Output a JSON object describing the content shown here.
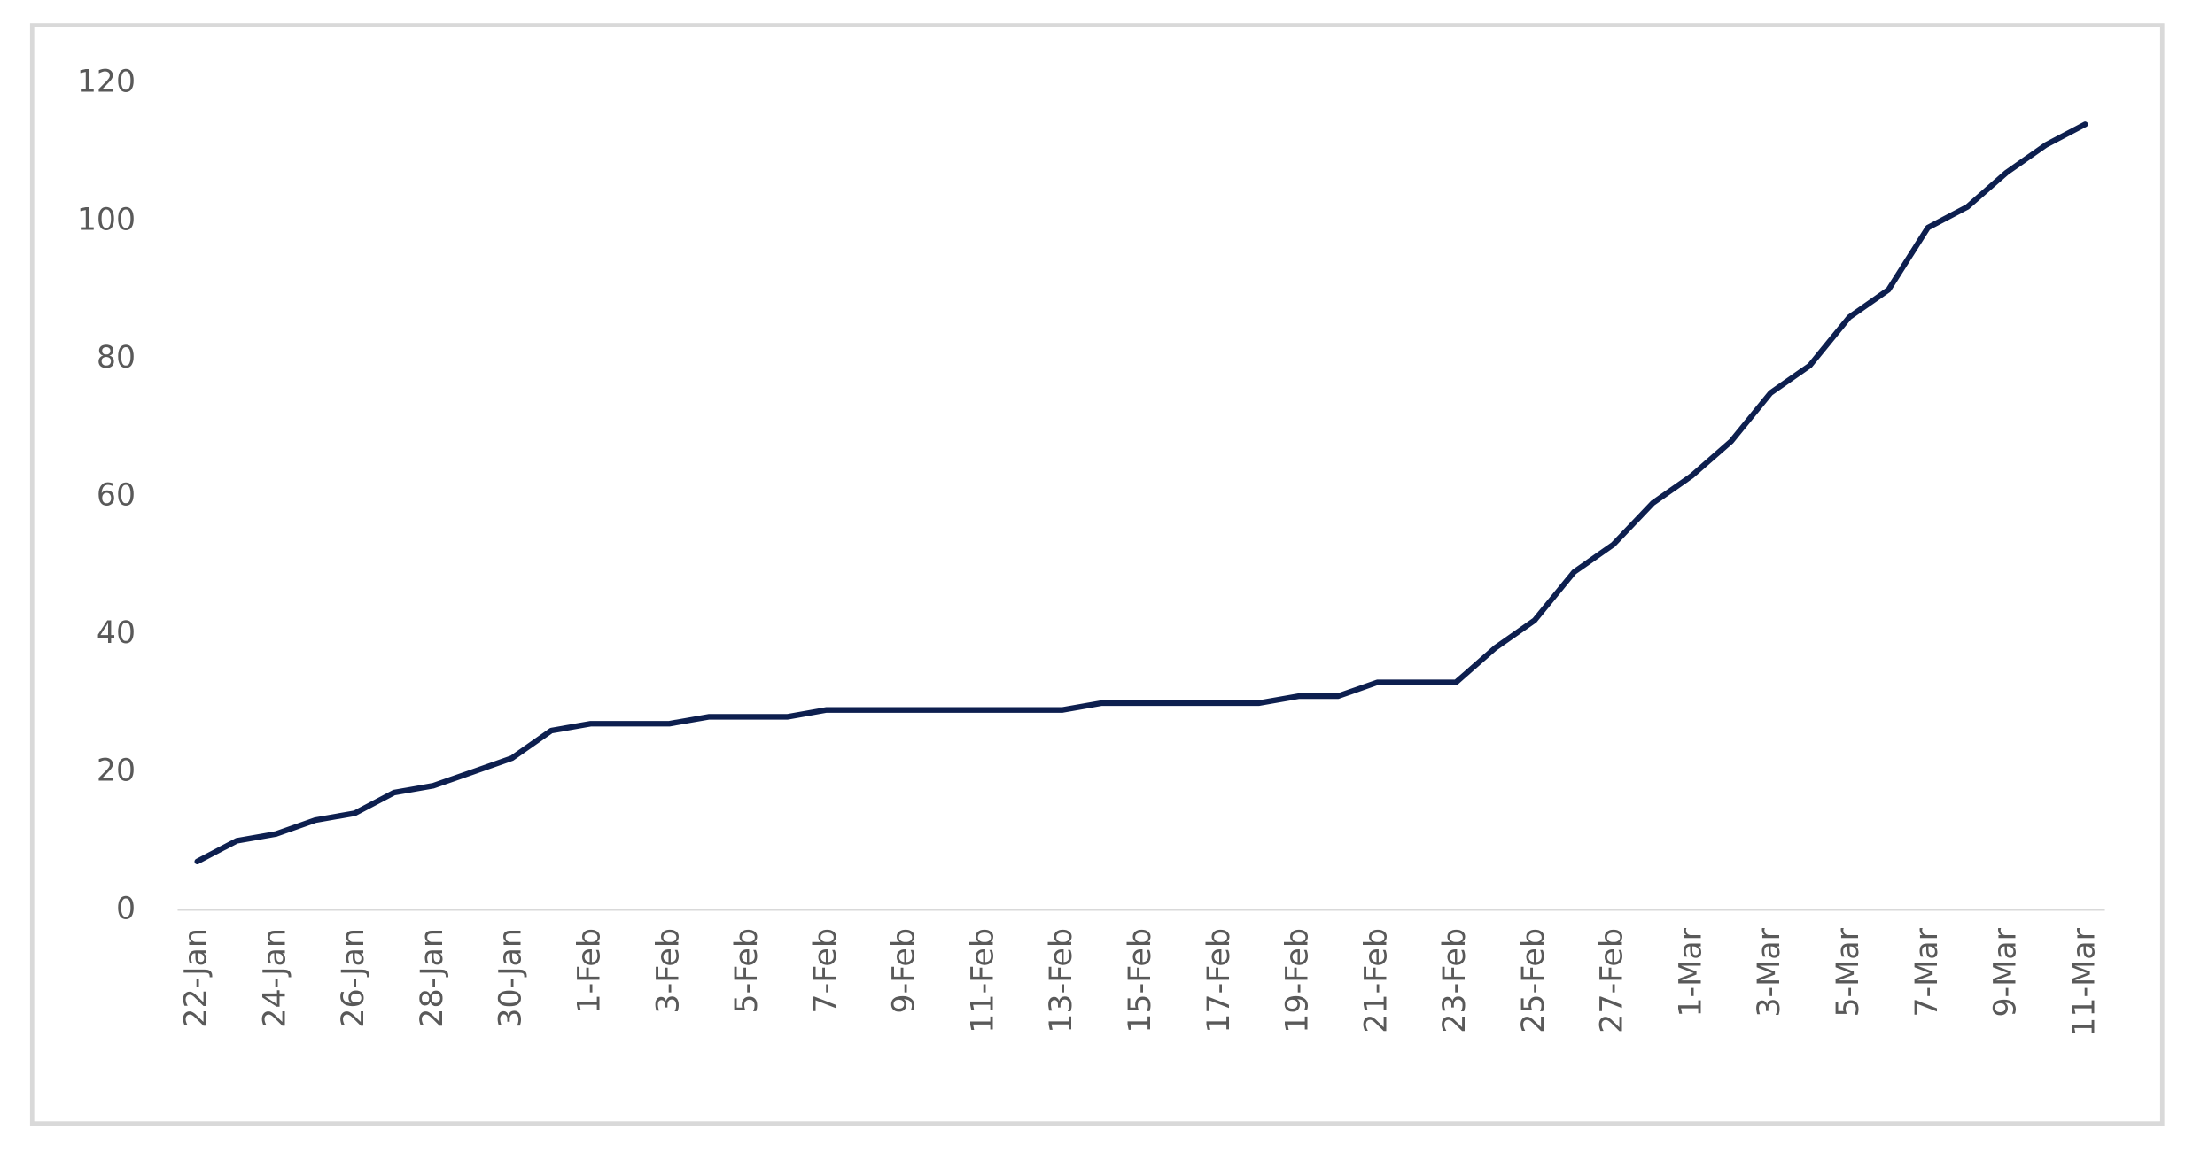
{
  "chart_data": {
    "type": "line",
    "categories": [
      "22-Jan",
      null,
      "24-Jan",
      null,
      "26-Jan",
      null,
      "28-Jan",
      null,
      "30-Jan",
      null,
      "1-Feb",
      null,
      "3-Feb",
      null,
      "5-Feb",
      null,
      "7-Feb",
      null,
      "9-Feb",
      null,
      "11-Feb",
      null,
      "13-Feb",
      null,
      "15-Feb",
      null,
      "17-Feb",
      null,
      "19-Feb",
      null,
      "21-Feb",
      null,
      "23-Feb",
      null,
      "25-Feb",
      null,
      "27-Feb",
      null,
      "1-Mar",
      null,
      "3-Mar",
      null,
      "5-Mar",
      null,
      "7-Mar",
      null,
      "9-Mar",
      null,
      "11-Mar"
    ],
    "series": [
      {
        "color": "#0d1f4f",
        "values": [
          7,
          10,
          11,
          13,
          14,
          17,
          18,
          20,
          22,
          26,
          27,
          27,
          27,
          28,
          28,
          28,
          29,
          29,
          29,
          29,
          29,
          29,
          29,
          30,
          30,
          30,
          30,
          30,
          31,
          31,
          33,
          33,
          33,
          38,
          42,
          49,
          53,
          59,
          63,
          68,
          75,
          79,
          86,
          90,
          99,
          102,
          107,
          111,
          114
        ]
      }
    ],
    "ylim": [
      0,
      120
    ],
    "yticks": [
      0,
      20,
      40,
      60,
      80,
      100,
      120
    ],
    "grid": false
  }
}
